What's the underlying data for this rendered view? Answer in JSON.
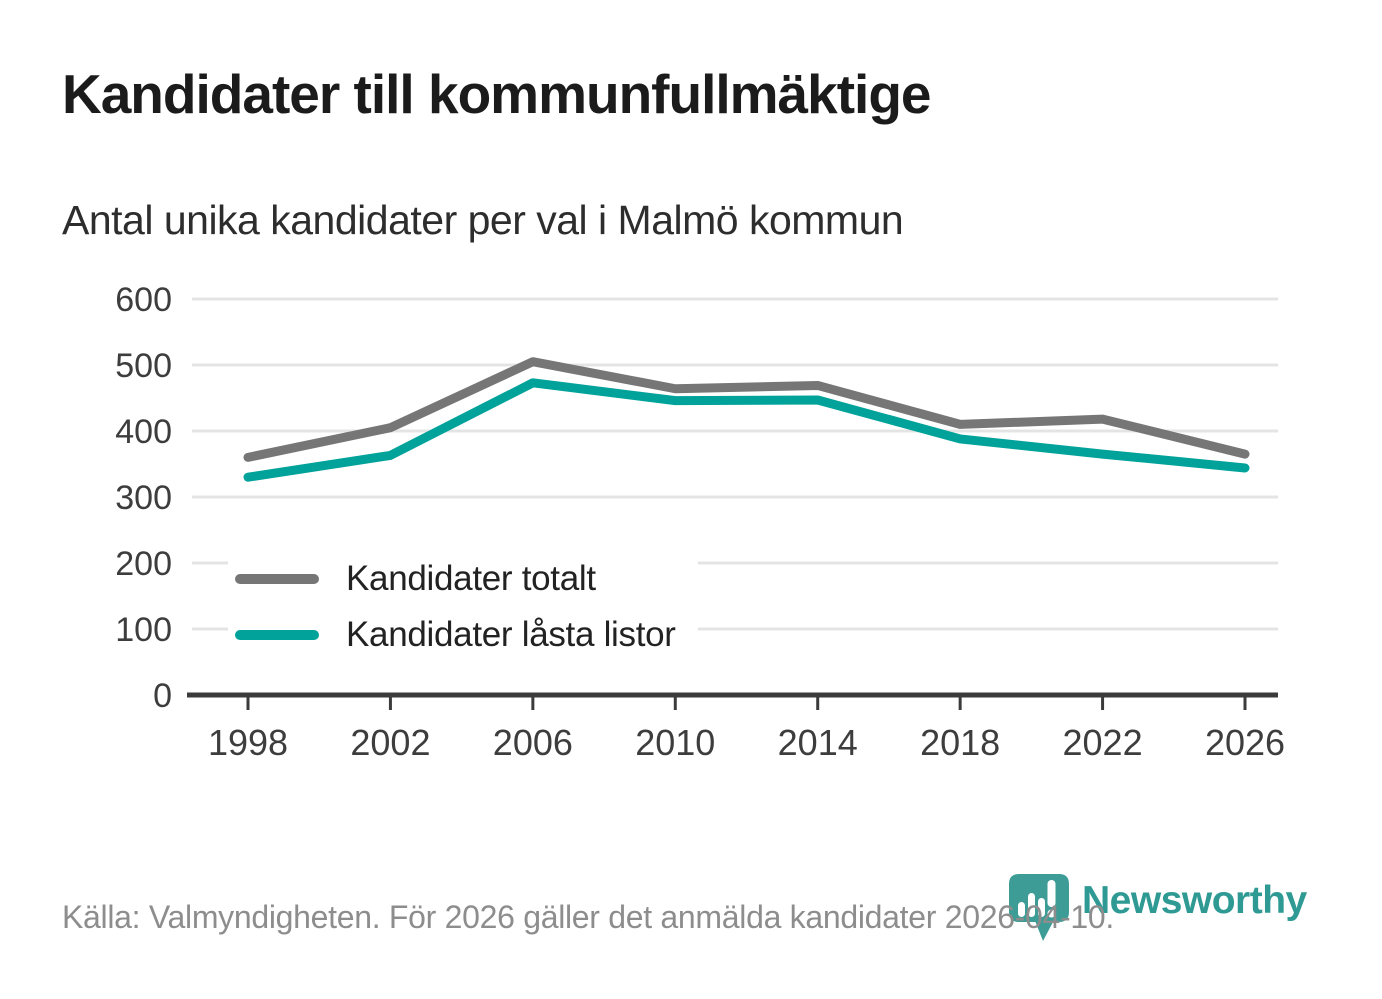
{
  "page": {
    "title": "Kandidater till kommunfullmäktige",
    "subtitle": "Antal unika kandidater per val i Malmö kommun",
    "source_note": "Källa: Valmyndigheten. För 2026 gäller det anmälda kandidater 2026-04-10.",
    "brand_name": "Newsworthy"
  },
  "colors": {
    "total_line": "#767676",
    "locked_line": "#00a29a",
    "grid": "#e4e4e4",
    "axis": "#3b3b3b",
    "tick_label": "#3d3d3d",
    "title_text": "#1b1b1b",
    "footer_text": "#8d8d8d",
    "brand_text": "#2f9a93",
    "brand_icon": "#3d9d96"
  },
  "chart_data": {
    "type": "line",
    "title": "Kandidater till kommunfullmäktige",
    "subtitle": "Antal unika kandidater per val i Malmö kommun",
    "categories": [
      "1998",
      "2002",
      "2006",
      "2010",
      "2014",
      "2018",
      "2022",
      "2026"
    ],
    "series": [
      {
        "name": "Kandidater totalt",
        "color": "#767676",
        "values": [
          360,
          405,
          505,
          464,
          469,
          410,
          418,
          365
        ]
      },
      {
        "name": "Kandidater låsta listor",
        "color": "#00a29a",
        "values": [
          330,
          363,
          473,
          446,
          447,
          388,
          365,
          344
        ]
      }
    ],
    "xlabel": "",
    "ylabel": "",
    "ylim": [
      0,
      600
    ],
    "ytick_step": 100,
    "grid": true,
    "legend_position": "inside-bottom-left"
  }
}
